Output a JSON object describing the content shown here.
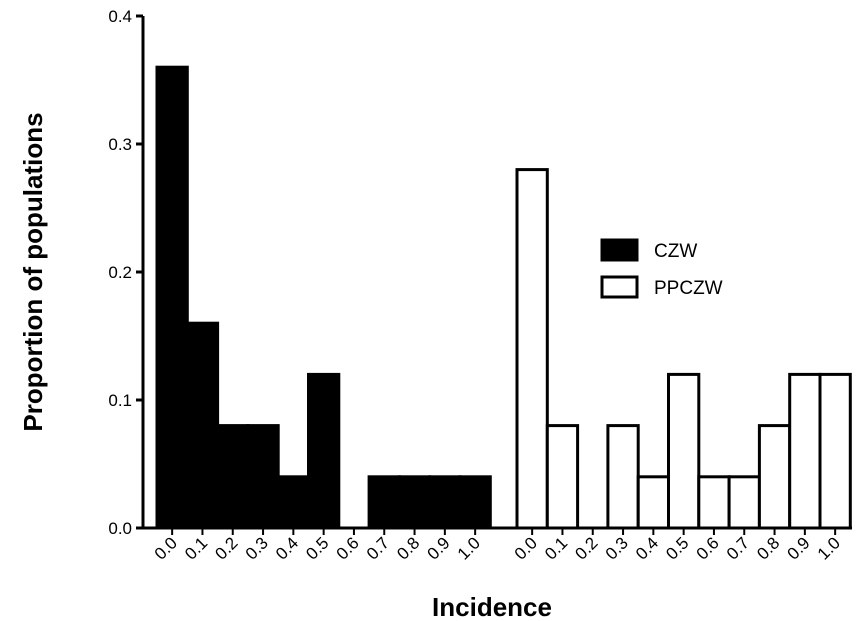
{
  "chart_data": {
    "type": "bar",
    "xlabel": "Incidence",
    "ylabel": "Proportion of populations",
    "ylim": [
      0,
      0.4
    ],
    "yticks": [
      "0.0",
      "0.1",
      "0.2",
      "0.3",
      "0.4"
    ],
    "legend_position": "right",
    "series": [
      {
        "name": "CZW",
        "fill": "#000000",
        "categories": [
          "0.0",
          "0.1",
          "0.2",
          "0.3",
          "0.4",
          "0.5",
          "0.6",
          "0.7",
          "0.8",
          "0.9",
          "1.0"
        ],
        "values": [
          0.36,
          0.16,
          0.08,
          0.08,
          0.04,
          0.12,
          0.0,
          0.04,
          0.04,
          0.04,
          0.04
        ]
      },
      {
        "name": "PPCZW",
        "fill": "#ffffff",
        "categories": [
          "0.0",
          "0.1",
          "0.2",
          "0.3",
          "0.4",
          "0.5",
          "0.6",
          "0.7",
          "0.8",
          "0.9",
          "1.0"
        ],
        "values": [
          0.28,
          0.08,
          0.0,
          0.08,
          0.04,
          0.12,
          0.04,
          0.04,
          0.08,
          0.12,
          0.12
        ]
      }
    ]
  }
}
